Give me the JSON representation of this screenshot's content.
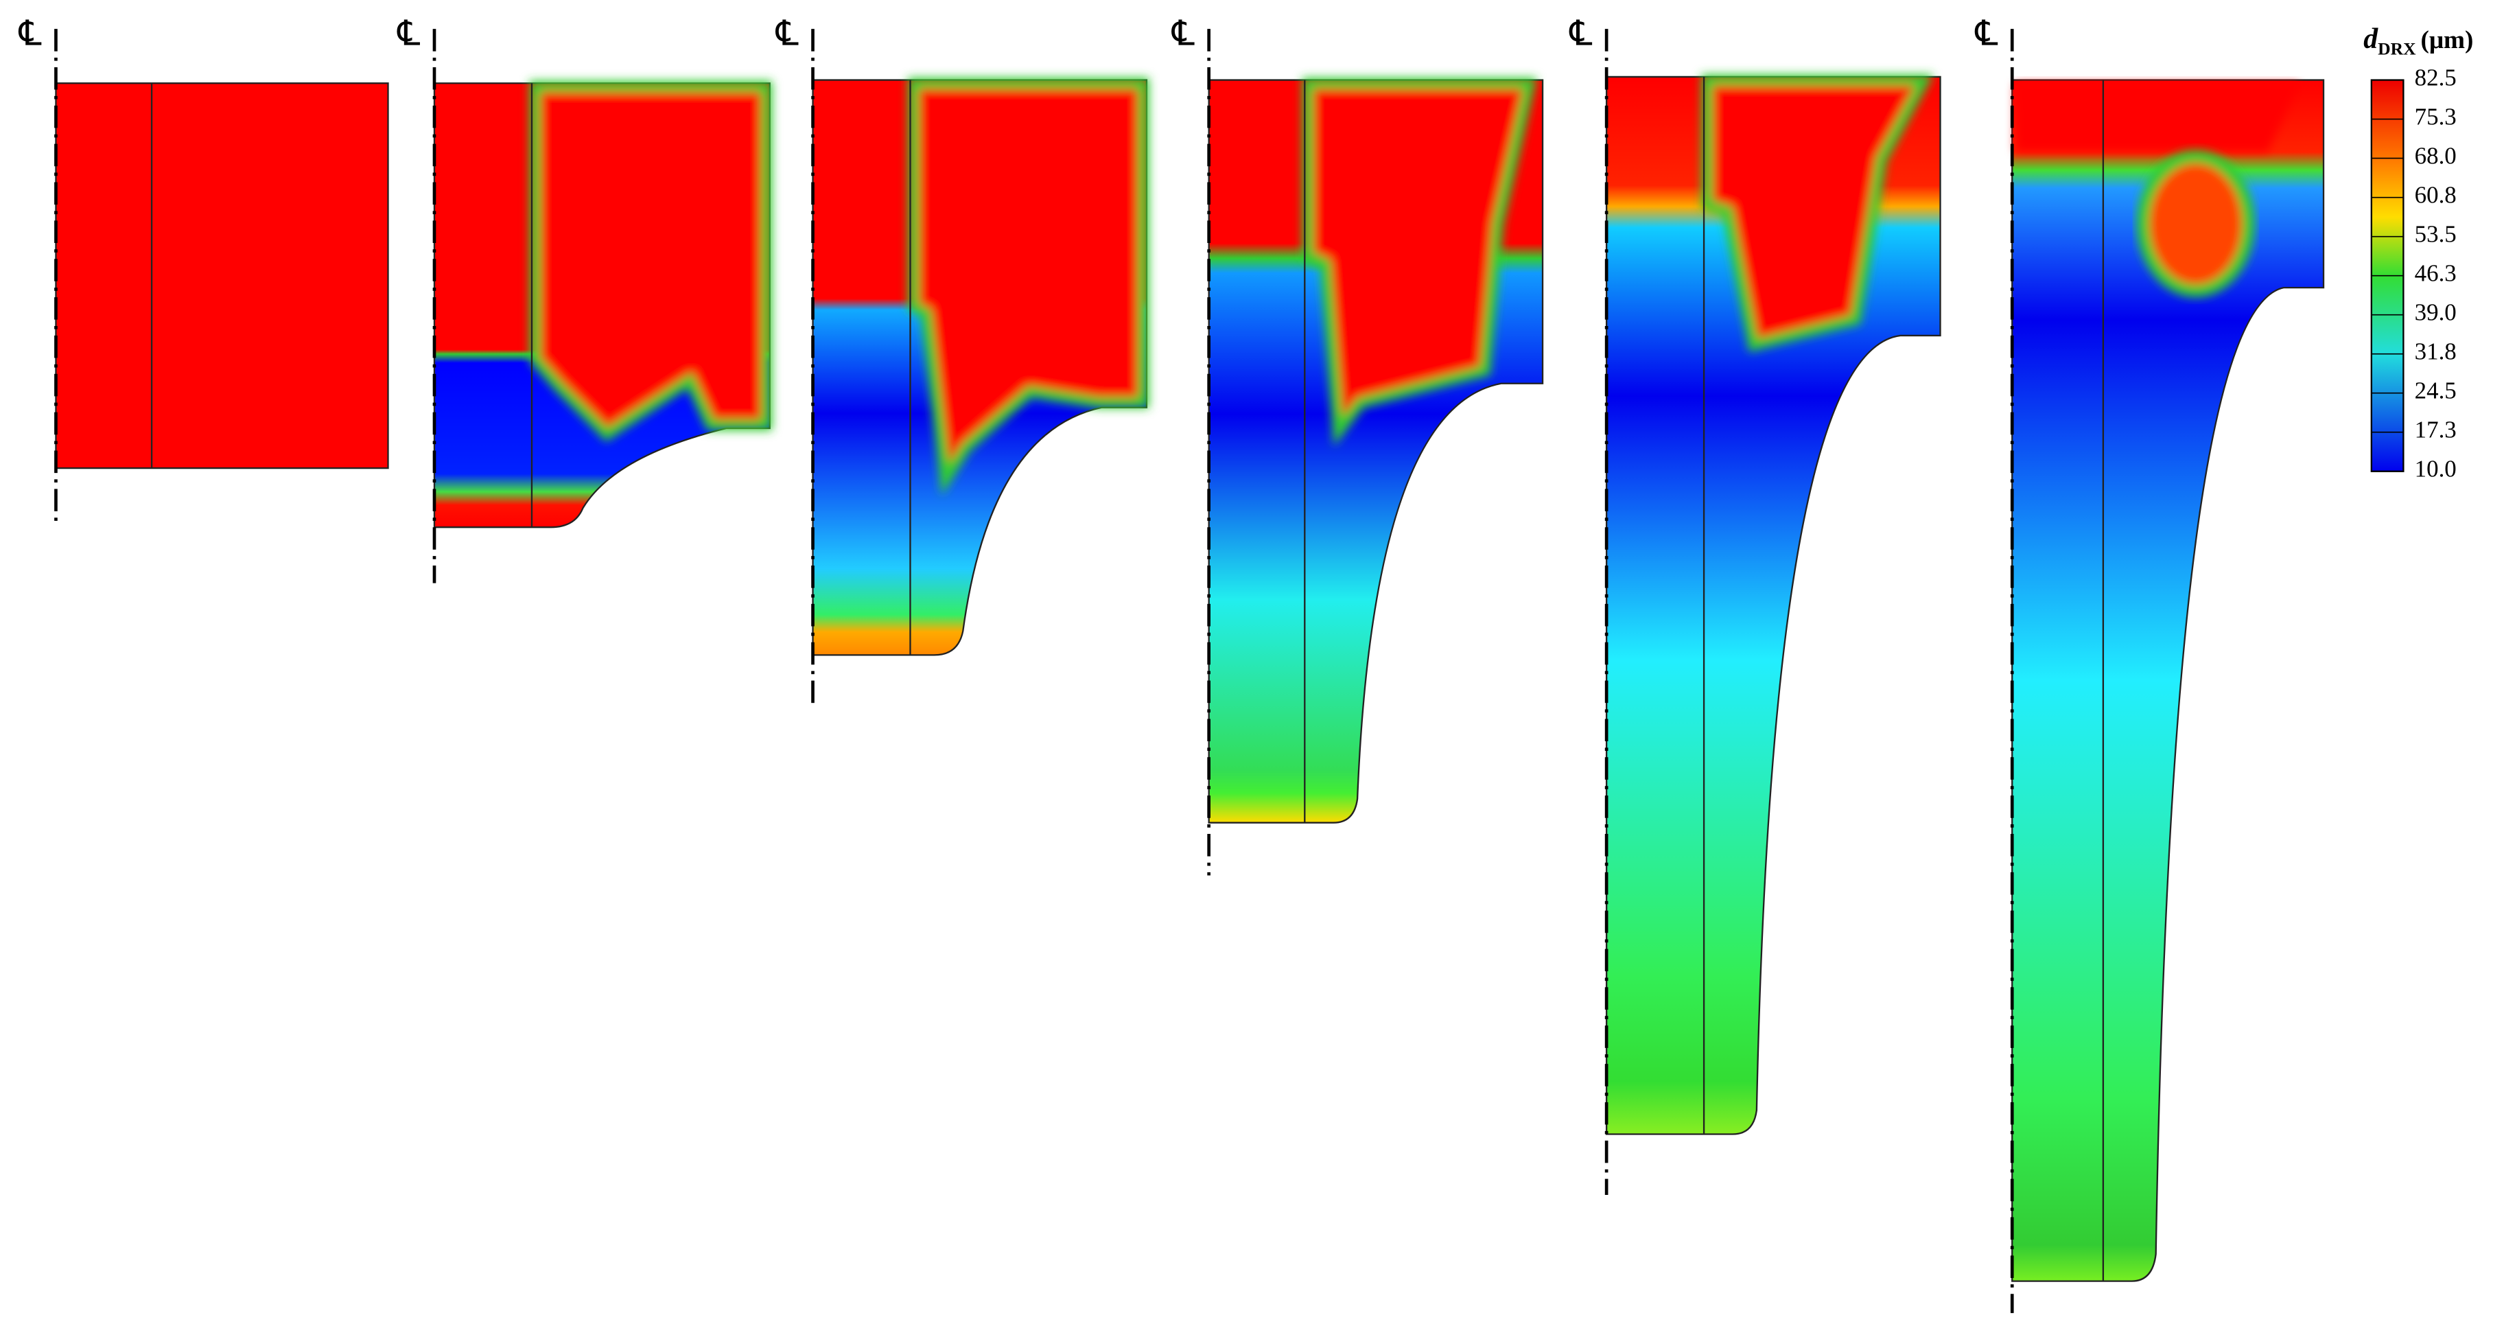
{
  "panels": [
    {
      "centerline": "℄"
    },
    {
      "centerline": "℄"
    },
    {
      "centerline": "℄"
    },
    {
      "centerline": "℄"
    },
    {
      "centerline": "℄"
    },
    {
      "centerline": "℄"
    }
  ],
  "legend": {
    "title": {
      "symbol": "d",
      "subscript": "DRX",
      "unit": "(μm)"
    },
    "ticks": [
      "82.5",
      "75.3",
      "68.0",
      "60.8",
      "53.5",
      "46.3",
      "39.0",
      "31.8",
      "24.5",
      "17.3",
      "10.0"
    ]
  }
}
